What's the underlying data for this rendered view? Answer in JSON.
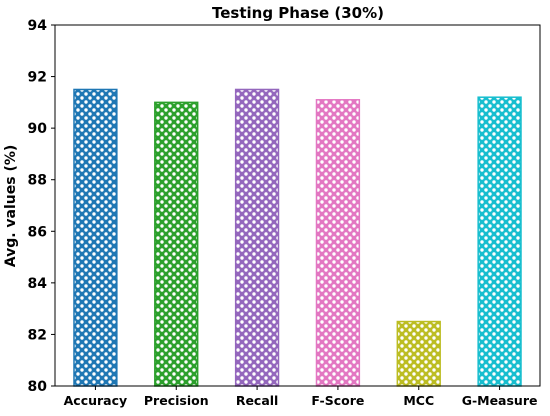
{
  "chart_data": {
    "type": "bar",
    "title": "Testing Phase (30%)",
    "xlabel": "",
    "ylabel": "Avg. values (%)",
    "categories": [
      "Accuracy",
      "Precision",
      "Recall",
      "F-Score",
      "MCC",
      "G-Measure"
    ],
    "values": [
      91.5,
      91.0,
      91.5,
      91.1,
      82.5,
      91.2
    ],
    "colors": [
      "#1f77b4",
      "#2ca02c",
      "#9467bd",
      "#e377c2",
      "#bcbd22",
      "#17becf"
    ],
    "ylim": [
      80,
      94
    ],
    "yticks": [
      "80",
      "82",
      "84",
      "86",
      "88",
      "90",
      "92",
      "94"
    ],
    "grid": false,
    "legend": "none",
    "bar_pattern": "hollow-circles"
  }
}
